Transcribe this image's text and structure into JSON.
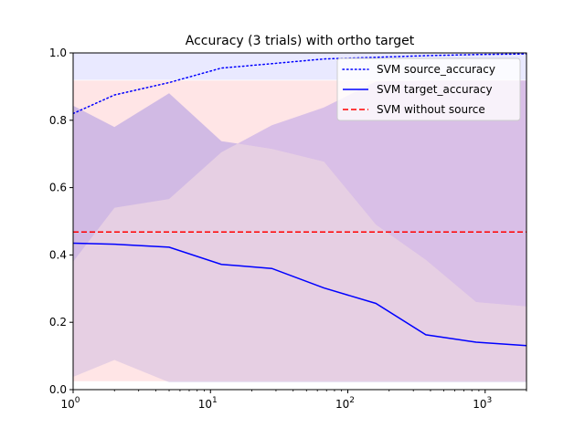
{
  "chart_data": {
    "type": "line",
    "title": "Accuracy (3 trials) with ortho target",
    "xlabel": "",
    "ylabel": "",
    "xscale": "log",
    "xlim": [
      1,
      2000
    ],
    "ylim": [
      0.0,
      1.0
    ],
    "grid": false,
    "legend_position": "top-right",
    "xticks": [
      {
        "value": 1,
        "label": "10",
        "exp": "0"
      },
      {
        "value": 10,
        "label": "10",
        "exp": "1"
      },
      {
        "value": 100,
        "label": "10",
        "exp": "2"
      },
      {
        "value": 1000,
        "label": "10",
        "exp": "3"
      }
    ],
    "yticks": [
      {
        "value": 0.0,
        "label": "0.0"
      },
      {
        "value": 0.2,
        "label": "0.2"
      },
      {
        "value": 0.4,
        "label": "0.4"
      },
      {
        "value": 0.6,
        "label": "0.6"
      },
      {
        "value": 0.8,
        "label": "0.8"
      },
      {
        "value": 1.0,
        "label": "1.0"
      }
    ],
    "x": [
      1,
      2,
      5,
      12,
      28,
      67,
      160,
      370,
      860,
      2000
    ],
    "series": [
      {
        "name": "SVM source_accuracy",
        "style": "dotted",
        "color": "#0000ff",
        "values": [
          0.82,
          0.875,
          0.912,
          0.955,
          0.968,
          0.982,
          0.987,
          0.992,
          0.995,
          0.997
        ],
        "band_lower": [
          0.92,
          0.92,
          0.92,
          0.92,
          0.92,
          0.92,
          0.92,
          0.92,
          0.92,
          0.92
        ],
        "band_upper": [
          1.0,
          1.0,
          1.0,
          1.0,
          1.0,
          1.0,
          1.0,
          1.0,
          1.0,
          1.0
        ],
        "band_color": "#e5e5ff"
      },
      {
        "name": "SVM target_accuracy",
        "style": "solid",
        "color": "#0000ff",
        "values": [
          0.435,
          0.432,
          0.423,
          0.372,
          0.36,
          0.302,
          0.256,
          0.163,
          0.141,
          0.131
        ],
        "band_lower": [
          0.38,
          0.54,
          0.566,
          0.705,
          0.785,
          0.838,
          0.915,
          0.918,
          0.918,
          0.918
        ],
        "band_upper": [
          0.843,
          0.78,
          0.88,
          0.738,
          0.715,
          0.677,
          0.49,
          0.385,
          0.26,
          0.247
        ],
        "band_color": "#d2b9e6"
      },
      {
        "name": "SVM without source",
        "style": "dashed",
        "color": "#ff0000",
        "values": [
          0.468,
          0.468,
          0.468,
          0.468,
          0.468,
          0.468,
          0.468,
          0.468,
          0.468,
          0.468
        ],
        "band_lower": [
          0.025,
          0.025,
          0.025,
          0.025,
          0.025,
          0.025,
          0.025,
          0.025,
          0.025,
          0.025
        ],
        "band_upper": [
          0.918,
          0.918,
          0.918,
          0.918,
          0.918,
          0.918,
          0.918,
          0.918,
          0.918,
          0.918
        ],
        "band_color": "#ffe0e2"
      }
    ],
    "target_band_inner": {
      "lower": [
        0.038,
        0.088,
        0.022,
        0.022,
        0.022,
        0.022,
        0.022,
        0.022,
        0.022,
        0.022
      ],
      "note_values": [
        0.038,
        0.088,
        0.022,
        0.022,
        0.022,
        0.022,
        0.022,
        0.022,
        0.022,
        0.022
      ]
    }
  }
}
